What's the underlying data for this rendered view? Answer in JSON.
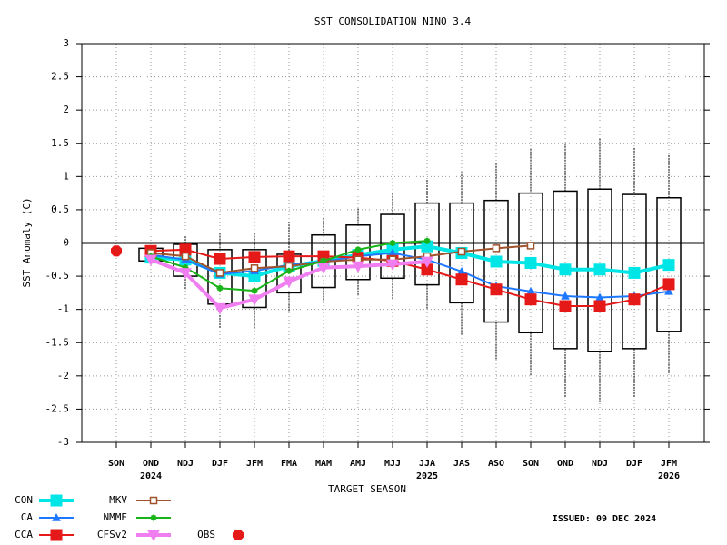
{
  "chart_data": {
    "type": "box-line",
    "title": "SST CONSOLIDATION NINO 3.4",
    "ylabel": "SST Anomaly (C)",
    "xlabel": "TARGET SEASON",
    "issued": "ISSUED: 09 DEC 2024",
    "categories": [
      "SON",
      "OND",
      "NDJ",
      "DJF",
      "JFM",
      "FMA",
      "MAM",
      "AMJ",
      "MJJ",
      "JJA",
      "JAS",
      "ASO",
      "SON",
      "OND",
      "NDJ",
      "DJF",
      "JFM"
    ],
    "category_years": [
      null,
      "2024",
      null,
      null,
      null,
      null,
      null,
      null,
      null,
      "2025",
      null,
      null,
      null,
      null,
      null,
      null,
      "2026"
    ],
    "ylim": [
      -3,
      3
    ],
    "yticks": [
      -3,
      -2.5,
      -2,
      -1.5,
      -1,
      -0.5,
      0,
      0.5,
      1,
      1.5,
      2,
      2.5,
      3
    ],
    "grid": true,
    "boxes": [
      null,
      {
        "low": -0.27,
        "high": -0.08,
        "whisker_low": -0.35,
        "whisker_high": -0.05
      },
      {
        "low": -0.5,
        "high": -0.02,
        "whisker_low": -0.7,
        "whisker_high": 0.1
      },
      {
        "low": -0.92,
        "high": -0.1,
        "whisker_low": -1.28,
        "whisker_high": 0.15
      },
      {
        "low": -0.97,
        "high": -0.1,
        "whisker_low": -1.3,
        "whisker_high": 0.15
      },
      {
        "low": -0.75,
        "high": -0.17,
        "whisker_low": -1.03,
        "whisker_high": 0.32
      },
      {
        "low": -0.67,
        "high": 0.12,
        "whisker_low": -0.9,
        "whisker_high": 0.38
      },
      {
        "low": -0.55,
        "high": 0.27,
        "whisker_low": -0.8,
        "whisker_high": 0.52
      },
      {
        "low": -0.53,
        "high": 0.43,
        "whisker_low": -0.85,
        "whisker_high": 0.75
      },
      {
        "low": -0.63,
        "high": 0.6,
        "whisker_low": -1.0,
        "whisker_high": 0.95
      },
      {
        "low": -0.9,
        "high": 0.6,
        "whisker_low": -1.38,
        "whisker_high": 1.07
      },
      {
        "low": -1.19,
        "high": 0.64,
        "whisker_low": -1.75,
        "whisker_high": 1.2
      },
      {
        "low": -1.35,
        "high": 0.75,
        "whisker_low": -2.0,
        "whisker_high": 1.42
      },
      {
        "low": -1.59,
        "high": 0.78,
        "whisker_low": -2.33,
        "whisker_high": 1.5
      },
      {
        "low": -1.63,
        "high": 0.81,
        "whisker_low": -2.4,
        "whisker_high": 1.57
      },
      {
        "low": -1.59,
        "high": 0.73,
        "whisker_low": -2.32,
        "whisker_high": 1.43
      },
      {
        "low": -1.33,
        "high": 0.68,
        "whisker_low": -1.96,
        "whisker_high": 1.32
      }
    ],
    "series": [
      {
        "name": "CON",
        "color": "#00e5e5",
        "marker": "square",
        "line_width": 4,
        "values": [
          null,
          -0.22,
          -0.25,
          -0.45,
          -0.5,
          -0.35,
          -0.27,
          -0.18,
          -0.1,
          -0.05,
          -0.15,
          -0.28,
          -0.3,
          -0.4,
          -0.4,
          -0.45,
          -0.33
        ]
      },
      {
        "name": "CA",
        "color": "#1e78ff",
        "marker": "triangle",
        "line_width": 2,
        "values": [
          null,
          -0.18,
          -0.25,
          -0.47,
          -0.42,
          -0.33,
          -0.28,
          -0.2,
          -0.15,
          -0.25,
          -0.43,
          -0.65,
          -0.73,
          -0.8,
          -0.82,
          -0.8,
          -0.73
        ]
      },
      {
        "name": "CCA",
        "color": "#e61919",
        "marker": "square",
        "line_width": 2,
        "values": [
          null,
          -0.12,
          -0.1,
          -0.24,
          -0.21,
          -0.2,
          -0.2,
          -0.22,
          -0.27,
          -0.4,
          -0.55,
          -0.7,
          -0.85,
          -0.95,
          -0.95,
          -0.85,
          -0.62
        ]
      },
      {
        "name": "MKV",
        "color": "#a0522d",
        "marker": "open-square",
        "line_width": 2,
        "values": [
          null,
          -0.15,
          -0.2,
          -0.45,
          -0.38,
          -0.35,
          -0.28,
          -0.25,
          -0.25,
          -0.2,
          -0.13,
          -0.08,
          -0.04,
          null,
          null,
          null,
          null
        ]
      },
      {
        "name": "NMME",
        "color": "#19b419",
        "marker": "star",
        "line_width": 2,
        "values": [
          null,
          -0.2,
          -0.37,
          -0.68,
          -0.72,
          -0.42,
          -0.27,
          -0.1,
          0,
          0.03,
          null,
          null,
          null,
          null,
          null,
          null,
          null
        ]
      },
      {
        "name": "CFSv2",
        "color": "#f07ef0",
        "marker": "triangle-down",
        "line_width": 4,
        "values": [
          null,
          -0.25,
          -0.45,
          -0.98,
          -0.85,
          -0.58,
          -0.37,
          -0.35,
          -0.32,
          -0.28,
          null,
          null,
          null,
          null,
          null,
          null,
          null
        ]
      },
      {
        "name": "OBS",
        "color": "#e61919",
        "marker": "octagon",
        "line_width": 0,
        "values": [
          -0.12,
          null,
          null,
          null,
          null,
          null,
          null,
          null,
          null,
          null,
          null,
          null,
          null,
          null,
          null,
          null,
          null
        ]
      }
    ]
  }
}
